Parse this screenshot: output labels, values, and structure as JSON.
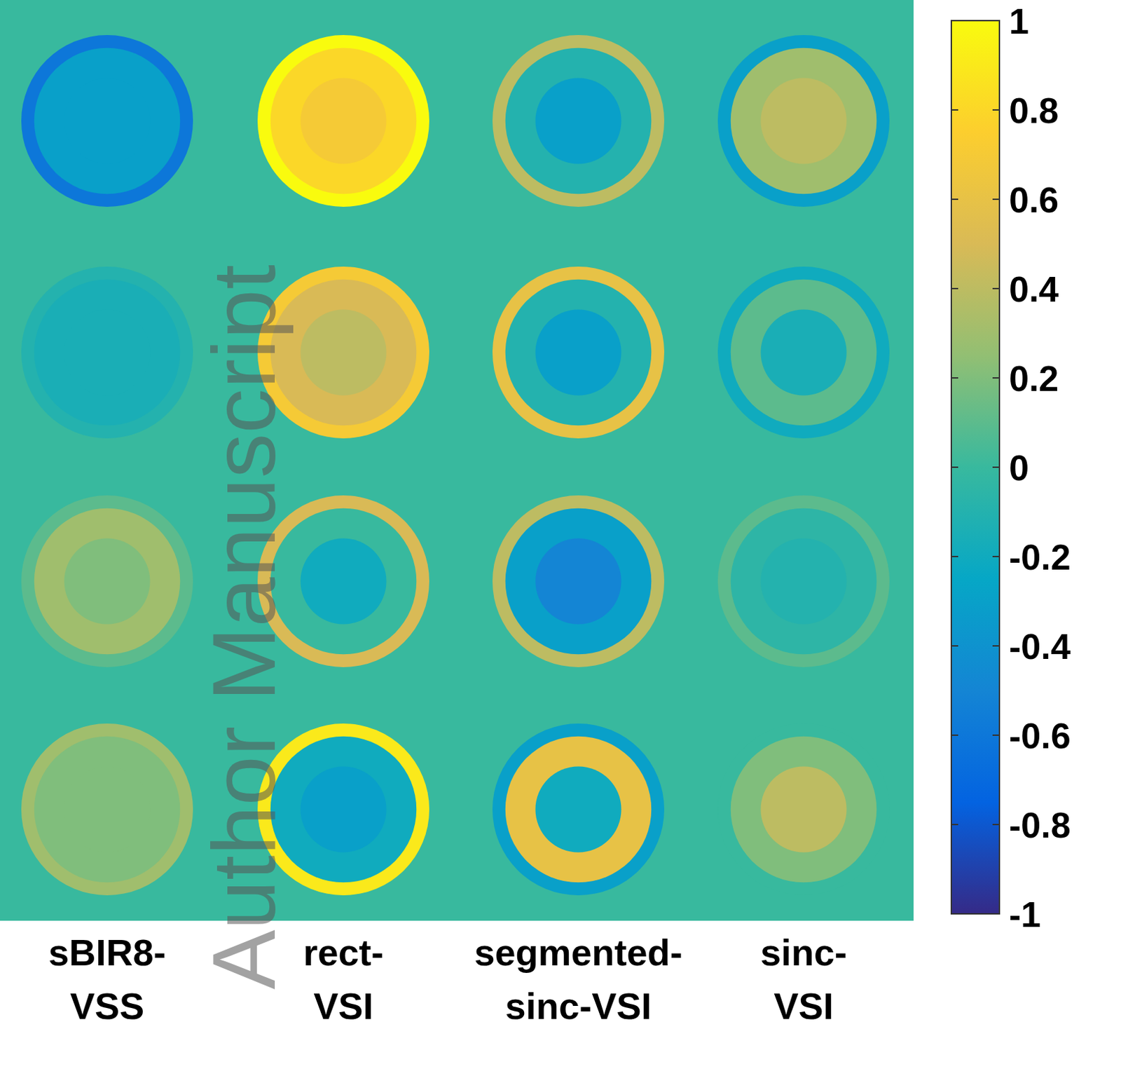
{
  "chart_data": {
    "type": "heatmap",
    "watermark": "Author Manuscript",
    "columns": [
      "sBIR8-VSS",
      "rect-VSI",
      "segmented-sinc-VSI",
      "sinc-VSI"
    ],
    "panels": [
      [
        {
          "center": -0.3,
          "middle": -0.3,
          "rim": -0.6
        },
        {
          "center": 0.7,
          "middle": 0.8,
          "rim": 1.0
        },
        {
          "center": -0.3,
          "middle": -0.1,
          "rim": 0.4
        },
        {
          "center": 0.4,
          "middle": 0.3,
          "rim": -0.3
        }
      ],
      [
        {
          "center": -0.15,
          "middle": -0.15,
          "rim": -0.1
        },
        {
          "center": 0.4,
          "middle": 0.5,
          "rim": 0.7
        },
        {
          "center": -0.3,
          "middle": -0.1,
          "rim": 0.6
        },
        {
          "center": -0.15,
          "middle": 0.1,
          "rim": -0.2
        }
      ],
      [
        {
          "center": 0.2,
          "middle": 0.3,
          "rim": 0.1
        },
        {
          "center": -0.2,
          "middle": 0.0,
          "rim": 0.5
        },
        {
          "center": -0.5,
          "middle": -0.3,
          "rim": 0.4
        },
        {
          "center": -0.1,
          "middle": -0.05,
          "rim": 0.1
        }
      ],
      [
        {
          "center": 0.2,
          "middle": 0.2,
          "rim": 0.3
        },
        {
          "center": -0.3,
          "middle": -0.2,
          "rim": 0.9
        },
        {
          "center": -0.2,
          "middle": 0.6,
          "rim": -0.3
        },
        {
          "center": 0.4,
          "middle": 0.2,
          "rim": 0.0
        }
      ]
    ],
    "colorbar": {
      "range": [
        -1,
        1
      ],
      "ticks": [
        -1,
        -0.8,
        -0.6,
        -0.4,
        -0.2,
        0,
        0.2,
        0.4,
        0.6,
        0.8,
        1
      ]
    }
  }
}
